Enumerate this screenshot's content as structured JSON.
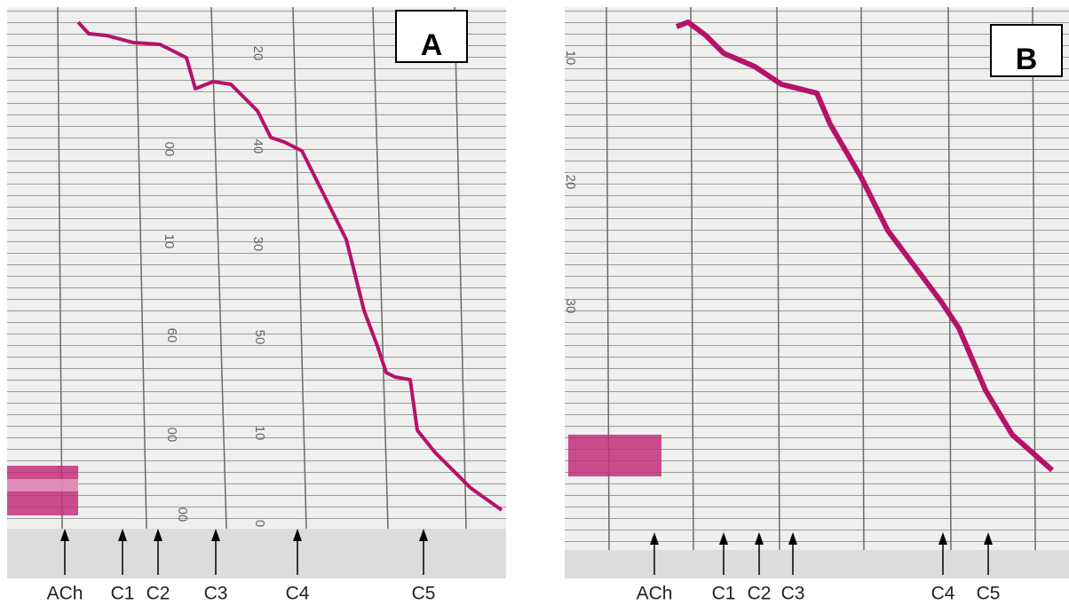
{
  "panels": [
    {
      "label": "A",
      "markers": [
        "ACh",
        "C1",
        "C2",
        "C3",
        "C4",
        "C5"
      ],
      "scale_labels": [
        "20",
        "40",
        "30",
        "50",
        "10",
        "0",
        "00",
        "10",
        "60",
        "00",
        "00"
      ]
    },
    {
      "label": "B",
      "markers": [
        "ACh",
        "C1",
        "C2",
        "C3",
        "C4",
        "C5"
      ],
      "scale_labels": [
        "10",
        "20",
        "30"
      ]
    }
  ]
}
